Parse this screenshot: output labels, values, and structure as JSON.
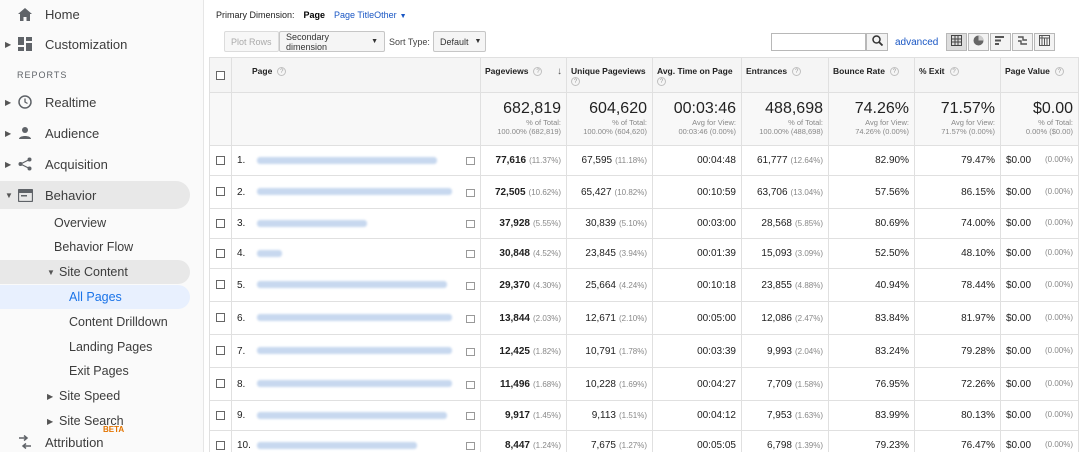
{
  "sidebar": {
    "top_items": [
      {
        "label": "Home",
        "icon": "home-icon"
      },
      {
        "label": "Customization",
        "icon": "dashboard-icon"
      }
    ],
    "section_label": "REPORTS",
    "report_items": [
      {
        "label": "Realtime",
        "icon": "clock-icon"
      },
      {
        "label": "Audience",
        "icon": "person-icon"
      },
      {
        "label": "Acquisition",
        "icon": "acquisition-icon"
      },
      {
        "label": "Behavior",
        "icon": "behavior-icon"
      }
    ],
    "behavior_sub": {
      "overview": "Overview",
      "behavior_flow": "Behavior Flow",
      "site_content": "Site Content",
      "all_pages": "All Pages",
      "content_drilldown": "Content Drilldown",
      "landing_pages": "Landing Pages",
      "exit_pages": "Exit Pages",
      "site_speed": "Site Speed",
      "site_search": "Site Search"
    },
    "attribution": {
      "label": "Attribution",
      "badge": "BETA"
    }
  },
  "primary_dimension": {
    "label": "Primary Dimension:",
    "current": "Page",
    "options": [
      "Page Title"
    ],
    "other": "Other"
  },
  "toolbar": {
    "plot_rows": "Plot Rows",
    "secondary_dimension": "Secondary dimension",
    "sort_type_label": "Sort Type:",
    "sort_type_value": "Default",
    "search_placeholder": "",
    "advanced": "advanced"
  },
  "table": {
    "headers": {
      "page": "Page",
      "pageviews": "Pageviews",
      "unique_pageviews": "Unique Pageviews",
      "avg_time": "Avg. Time on Page",
      "entrances": "Entrances",
      "bounce_rate": "Bounce Rate",
      "exit": "% Exit",
      "page_value": "Page Value"
    },
    "totals": {
      "pageviews": {
        "value": "682,819",
        "l1": "% of Total:",
        "l2": "100.00% (682,819)"
      },
      "unique_pageviews": {
        "value": "604,620",
        "l1": "% of Total:",
        "l2": "100.00% (604,620)"
      },
      "avg_time": {
        "value": "00:03:46",
        "l1": "Avg for View:",
        "l2": "00:03:46 (0.00%)"
      },
      "entrances": {
        "value": "488,698",
        "l1": "% of Total:",
        "l2": "100.00% (488,698)"
      },
      "bounce_rate": {
        "value": "74.26%",
        "l1": "Avg for View:",
        "l2": "74.26% (0.00%)"
      },
      "exit": {
        "value": "71.57%",
        "l1": "Avg for View:",
        "l2": "71.57% (0.00%)"
      },
      "page_value": {
        "value": "$0.00",
        "l1": "% of Total:",
        "l2": "0.00% ($0.00)"
      }
    },
    "rows": [
      {
        "n": "1.",
        "pv": "77,616",
        "pvp": "(11.37%)",
        "upv": "67,595",
        "upvp": "(11.18%)",
        "time": "00:04:48",
        "ent": "61,777",
        "entp": "(12.64%)",
        "br": "82.90%",
        "exit": "79.47%",
        "val": "$0.00",
        "valp": "(0.00%)"
      },
      {
        "n": "2.",
        "pv": "72,505",
        "pvp": "(10.62%)",
        "upv": "65,427",
        "upvp": "(10.82%)",
        "time": "00:10:59",
        "ent": "63,706",
        "entp": "(13.04%)",
        "br": "57.56%",
        "exit": "86.15%",
        "val": "$0.00",
        "valp": "(0.00%)"
      },
      {
        "n": "3.",
        "pv": "37,928",
        "pvp": "(5.55%)",
        "upv": "30,839",
        "upvp": "(5.10%)",
        "time": "00:03:00",
        "ent": "28,568",
        "entp": "(5.85%)",
        "br": "80.69%",
        "exit": "74.00%",
        "val": "$0.00",
        "valp": "(0.00%)"
      },
      {
        "n": "4.",
        "pv": "30,848",
        "pvp": "(4.52%)",
        "upv": "23,845",
        "upvp": "(3.94%)",
        "time": "00:01:39",
        "ent": "15,093",
        "entp": "(3.09%)",
        "br": "52.50%",
        "exit": "48.10%",
        "val": "$0.00",
        "valp": "(0.00%)"
      },
      {
        "n": "5.",
        "pv": "29,370",
        "pvp": "(4.30%)",
        "upv": "25,664",
        "upvp": "(4.24%)",
        "time": "00:10:18",
        "ent": "23,855",
        "entp": "(4.88%)",
        "br": "40.94%",
        "exit": "78.44%",
        "val": "$0.00",
        "valp": "(0.00%)"
      },
      {
        "n": "6.",
        "pv": "13,844",
        "pvp": "(2.03%)",
        "upv": "12,671",
        "upvp": "(2.10%)",
        "time": "00:05:00",
        "ent": "12,086",
        "entp": "(2.47%)",
        "br": "83.84%",
        "exit": "81.97%",
        "val": "$0.00",
        "valp": "(0.00%)"
      },
      {
        "n": "7.",
        "pv": "12,425",
        "pvp": "(1.82%)",
        "upv": "10,791",
        "upvp": "(1.78%)",
        "time": "00:03:39",
        "ent": "9,993",
        "entp": "(2.04%)",
        "br": "83.24%",
        "exit": "79.28%",
        "val": "$0.00",
        "valp": "(0.00%)"
      },
      {
        "n": "8.",
        "pv": "11,496",
        "pvp": "(1.68%)",
        "upv": "10,228",
        "upvp": "(1.69%)",
        "time": "00:04:27",
        "ent": "7,709",
        "entp": "(1.58%)",
        "br": "76.95%",
        "exit": "72.26%",
        "val": "$0.00",
        "valp": "(0.00%)"
      },
      {
        "n": "9.",
        "pv": "9,917",
        "pvp": "(1.45%)",
        "upv": "9,113",
        "upvp": "(1.51%)",
        "time": "00:04:12",
        "ent": "7,953",
        "entp": "(1.63%)",
        "br": "83.99%",
        "exit": "80.13%",
        "val": "$0.00",
        "valp": "(0.00%)"
      },
      {
        "n": "10.",
        "pv": "8,447",
        "pvp": "(1.24%)",
        "upv": "7,675",
        "upvp": "(1.27%)",
        "time": "00:05:05",
        "ent": "6,798",
        "entp": "(1.39%)",
        "br": "79.23%",
        "exit": "76.47%",
        "val": "$0.00",
        "valp": "(0.00%)"
      }
    ]
  },
  "colors": {
    "link": "#1a57c4",
    "selected": "#1a73e8",
    "beta": "#e37400"
  }
}
